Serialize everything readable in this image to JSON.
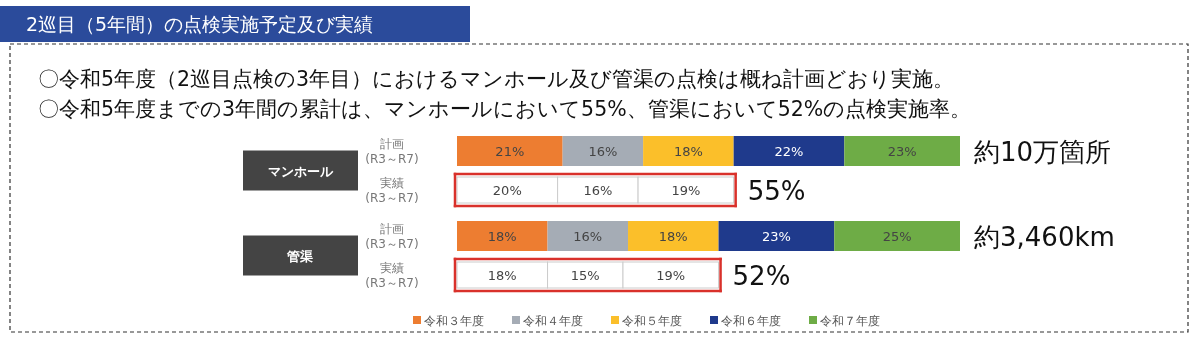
{
  "chart_data": {
    "type": "bar",
    "orientation": "horizontal",
    "stacked": true,
    "title": "2巡目（5年間）の点検実施予定及び実績",
    "categories": [
      "計画(R3～R7)",
      "実績(R3～R7)",
      "計画(R3～R7)",
      "実績(R3～R7)"
    ],
    "series": [
      {
        "name": "令和３年度",
        "color": "#ed7d31",
        "colors": [
          "#ed7d31",
          "#ffffff",
          "#ed7d31",
          "#ffffff"
        ],
        "values": [
          21,
          20,
          18,
          18
        ],
        "value_labels": [
          "21%",
          "20%",
          "18%",
          "18%"
        ]
      },
      {
        "name": "令和４年度",
        "color": "#a5acb5",
        "colors": [
          "#a5acb5",
          "#ffffff",
          "#a5acb5",
          "#ffffff"
        ],
        "values": [
          16,
          16,
          16,
          15
        ],
        "value_labels": [
          "16%",
          "16%",
          "16%",
          "15%"
        ]
      },
      {
        "name": "令和５年度",
        "color": "#fbbf2a",
        "colors": [
          "#fbbf2a",
          "#ffffff",
          "#fbbf2a",
          "#ffffff"
        ],
        "values": [
          18,
          19,
          18,
          19
        ],
        "value_labels": [
          "18%",
          "19%",
          "18%",
          "19%"
        ]
      },
      {
        "name": "令和６年度",
        "color": "#1f3a8c",
        "values": [
          22,
          null,
          23,
          null
        ],
        "value_labels": [
          "22%",
          null,
          "23%",
          null
        ]
      },
      {
        "name": "令和７年度",
        "color": "#6eac46",
        "values": [
          23,
          null,
          25,
          null
        ],
        "value_labels": [
          "23%",
          null,
          "25%",
          null
        ]
      }
    ],
    "legend": "bottom",
    "annotations": [
      "〇令和5年度（2巡目点検の3年目）におけるマンホール及び管渠の点検は概ね計画どおり実施。",
      "〇令和5年度までの3年間の累計は、マンホールにおいて55%、管渠において52%の点検実施率。",
      "マンホール",
      "管渠",
      "約10万箇所",
      "55%",
      "約3,460km",
      "52%"
    ]
  }
}
